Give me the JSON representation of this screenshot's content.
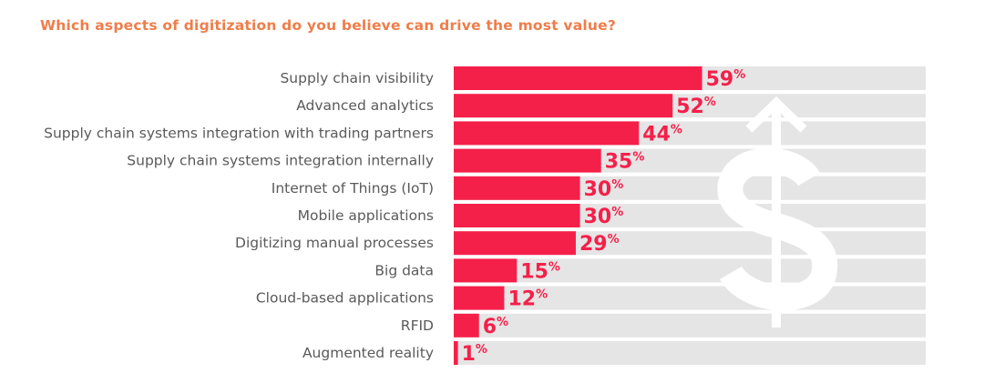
{
  "title": "Which aspects of digitization do you believe can drive the most value?",
  "colors": {
    "title": "#ef7d4a",
    "bar": "#f5204a",
    "track": "#e6e5e5",
    "value_label": "#f5204a",
    "watermark": "#ffffff"
  },
  "watermark_icon": "dollar-arrow-icon",
  "chart_data": {
    "type": "bar",
    "orientation": "horizontal",
    "title": "Which aspects of digitization do you believe can drive the most value?",
    "unit": "%",
    "xlim": [
      0,
      100
    ],
    "categories": [
      "Supply chain visibility",
      "Advanced analytics",
      "Supply chain systems integration with trading partners",
      "Supply chain systems integration internally",
      "Internet of Things (IoT)",
      "Mobile applications",
      "Digitizing manual processes",
      "Big data",
      "Cloud-based applications",
      "RFID",
      "Augmented reality"
    ],
    "values": [
      59,
      52,
      44,
      35,
      30,
      30,
      29,
      15,
      12,
      6,
      1
    ],
    "value_labels": [
      "59",
      "52",
      "44",
      "35",
      "30",
      "30",
      "29",
      "15",
      "12",
      "6",
      "1"
    ]
  }
}
